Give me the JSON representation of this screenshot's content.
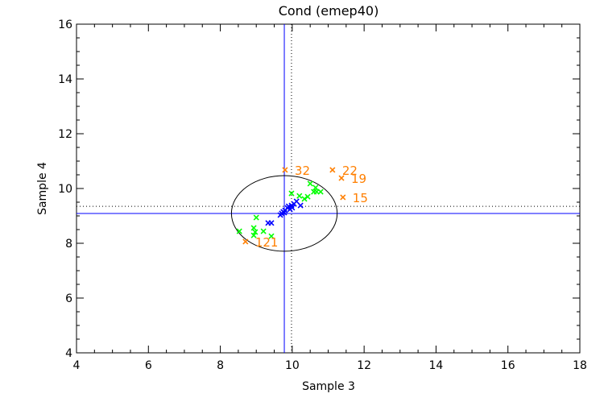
{
  "chart_data": {
    "type": "scatter",
    "title": "Cond (emep40)",
    "xlabel": "Sample 3",
    "ylabel": "Sample 4",
    "xlim": [
      4,
      18
    ],
    "ylim": [
      4,
      16
    ],
    "xticks": [
      "4",
      "6",
      "8",
      "10",
      "12",
      "14",
      "16",
      "18"
    ],
    "yticks": [
      "4",
      "6",
      "8",
      "10",
      "12",
      "14",
      "16"
    ],
    "grid": false,
    "reference_lines": {
      "solid_x": 9.78,
      "solid_y": 9.09,
      "dotted_x": 9.98,
      "dotted_y": 9.35,
      "color": "#0000ff"
    },
    "ellipse": {
      "cx": 9.78,
      "cy": 9.09,
      "rx": 1.47,
      "ry": 1.38,
      "color": "#000000"
    },
    "series": [
      {
        "name": "core",
        "color": "#0000ff",
        "points": [
          [
            9.33,
            8.74
          ],
          [
            9.42,
            8.74
          ],
          [
            9.71,
            9.09
          ],
          [
            9.75,
            9.15
          ],
          [
            9.87,
            9.29
          ],
          [
            9.98,
            9.38
          ],
          [
            10.05,
            9.44
          ],
          [
            10.12,
            9.53
          ],
          [
            10.23,
            9.38
          ],
          [
            9.94,
            9.24
          ],
          [
            9.8,
            9.2
          ],
          [
            9.67,
            9.03
          ],
          [
            9.9,
            9.35
          ],
          [
            10.0,
            9.3
          ],
          [
            9.78,
            9.12
          ]
        ]
      },
      {
        "name": "secondary",
        "color": "#00ff00",
        "points": [
          [
            8.53,
            8.44
          ],
          [
            9.0,
            8.94
          ],
          [
            8.93,
            8.56
          ],
          [
            8.97,
            8.41
          ],
          [
            8.93,
            8.29
          ],
          [
            9.2,
            8.44
          ],
          [
            9.42,
            8.26
          ],
          [
            9.98,
            9.82
          ],
          [
            10.2,
            9.73
          ],
          [
            10.34,
            9.62
          ],
          [
            10.43,
            9.7
          ],
          [
            10.5,
            10.18
          ],
          [
            10.65,
            10.03
          ],
          [
            10.68,
            9.88
          ],
          [
            10.79,
            9.88
          ],
          [
            10.6,
            9.88
          ]
        ]
      },
      {
        "name": "outliers",
        "color": "#ff7f00",
        "points": [
          {
            "x": 9.8,
            "y": 10.68,
            "label": "32"
          },
          {
            "x": 11.12,
            "y": 10.68,
            "label": "22"
          },
          {
            "x": 11.37,
            "y": 10.38,
            "label": "19"
          },
          {
            "x": 11.41,
            "y": 9.68,
            "label": "15"
          },
          {
            "x": 8.7,
            "y": 8.06,
            "label": "121"
          }
        ]
      }
    ]
  }
}
